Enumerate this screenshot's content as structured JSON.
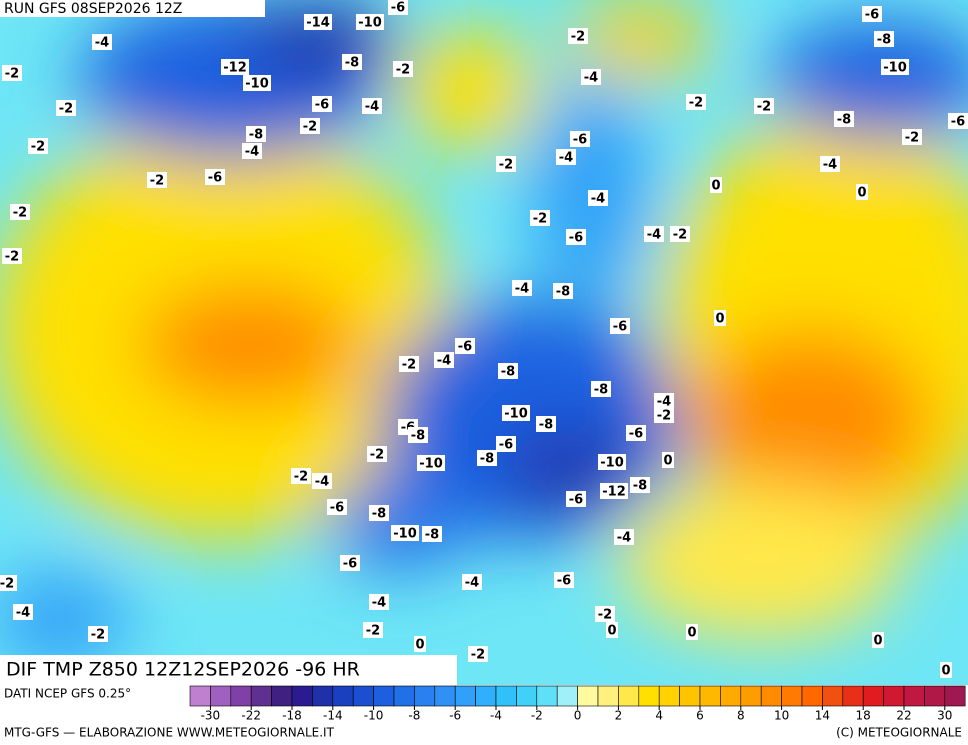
{
  "header": {
    "run": "RUN GFS 08SEP2026 12Z"
  },
  "map": {
    "title": "DIF TMP Z850 12Z12SEP2026 -96 HR",
    "labels": [
      -14,
      -10,
      -6,
      -4,
      -2,
      -12,
      -10,
      -8,
      -2,
      -6,
      -4,
      -2,
      -8,
      -4,
      -2,
      -2,
      -2,
      -6,
      -2,
      -2,
      -2,
      -4,
      -2,
      -2,
      -6,
      -8,
      -10,
      -8,
      -2,
      -6,
      -4,
      0,
      0,
      -6,
      -4,
      -2,
      -4,
      -2,
      -6,
      -4,
      -2,
      -4,
      -8,
      -6,
      0,
      -6,
      -4,
      -2,
      -8,
      -8,
      -4,
      -2,
      -10,
      -8,
      -6,
      -8,
      -6,
      -6,
      -2,
      -10,
      -8,
      -10,
      0,
      -2,
      -4,
      -12,
      -8,
      -6,
      -8,
      -6,
      -10,
      -8,
      -4,
      -6,
      -4,
      -6,
      -2,
      -4,
      -4,
      -2,
      -2,
      -2,
      0,
      0,
      0,
      0,
      -2,
      0
    ]
  },
  "colorbar": {
    "colors": [
      "#c080d0",
      "#a060c0",
      "#8040a8",
      "#603090",
      "#402080",
      "#2a1c90",
      "#2030a8",
      "#1a40c0",
      "#1a50d0",
      "#1c60e0",
      "#2070e8",
      "#2a80f0",
      "#3090f5",
      "#30a0f8",
      "#30b0fa",
      "#30c0fa",
      "#40d0f8",
      "#60e0f8",
      "#a0f0fa",
      "#fffaa0",
      "#fff080",
      "#ffe84a",
      "#ffe000",
      "#ffd200",
      "#ffc400",
      "#ffb800",
      "#ffaa00",
      "#ff9c00",
      "#ff8c00",
      "#ff7a00",
      "#ff6800",
      "#f05010",
      "#e83018",
      "#e01c20",
      "#d01830",
      "#c01840",
      "#b01848",
      "#a01850"
    ],
    "ticks": [
      -30,
      -22,
      -18,
      -14,
      -10,
      -8,
      -6,
      -4,
      -2,
      0,
      2,
      4,
      6,
      8,
      10,
      14,
      18,
      22,
      30
    ]
  },
  "footer": {
    "source": "DATI NCEP GFS 0.25°",
    "credit": "MTG-GFS — ELABORAZIONE WWW.METEOGIORNALE.IT",
    "copyright": "(C) METEOGIORNALE"
  }
}
